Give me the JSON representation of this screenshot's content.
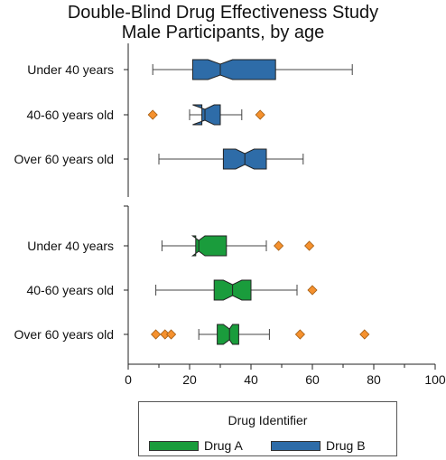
{
  "chart_data": {
    "type": "boxplot",
    "orientation": "horizontal",
    "title": [
      "Double-Blind Drug Effectiveness Study",
      "Male Participants, by age"
    ],
    "xlabel": "",
    "ylabel": "",
    "xlim": [
      0,
      100
    ],
    "xticks": [
      "0",
      "20",
      "40",
      "60",
      "80",
      "100"
    ],
    "notched": true,
    "legend": {
      "title": "Drug Identifier",
      "placement": "bottom",
      "entries": [
        {
          "name": "Drug A",
          "color": "#1a9c3c"
        },
        {
          "name": "Drug B",
          "color": "#2e6ca8"
        }
      ]
    },
    "boxes": [
      {
        "label": "Under 40 years",
        "series": "Drug B",
        "whisker_low": 8,
        "q1": 21,
        "median": 30,
        "q3": 48,
        "whisker_high": 73,
        "notch_low": 26,
        "notch_high": 34,
        "outliers": []
      },
      {
        "label": "40-60 years old",
        "series": "Drug B",
        "whisker_low": 20,
        "q1": 24,
        "median": 25,
        "q3": 30,
        "whisker_high": 37,
        "notch_low": 21,
        "notch_high": 28,
        "outliers": [
          8,
          43
        ]
      },
      {
        "label": "Over 60 years old",
        "series": "Drug B",
        "whisker_low": 10,
        "q1": 31,
        "median": 38,
        "q3": 45,
        "whisker_high": 57,
        "notch_low": 35,
        "notch_high": 41,
        "outliers": []
      },
      {
        "label": "Under 40 years",
        "series": "Drug A",
        "whisker_low": 11,
        "q1": 22,
        "median": 23,
        "q3": 32,
        "whisker_high": 45,
        "notch_low": 21,
        "notch_high": 25,
        "outliers": [
          49,
          59
        ]
      },
      {
        "label": "40-60 years old",
        "series": "Drug A",
        "whisker_low": 9,
        "q1": 28,
        "median": 34,
        "q3": 40,
        "whisker_high": 55,
        "notch_low": 31,
        "notch_high": 37,
        "outliers": [
          60
        ]
      },
      {
        "label": "Over 60 years old",
        "series": "Drug A",
        "whisker_low": 23,
        "q1": 29,
        "median": 33,
        "q3": 36,
        "whisker_high": 46,
        "notch_low": 31,
        "notch_high": 34,
        "outliers": [
          9,
          12,
          14,
          56,
          77
        ]
      }
    ],
    "outlier_color": "#f5912e"
  }
}
